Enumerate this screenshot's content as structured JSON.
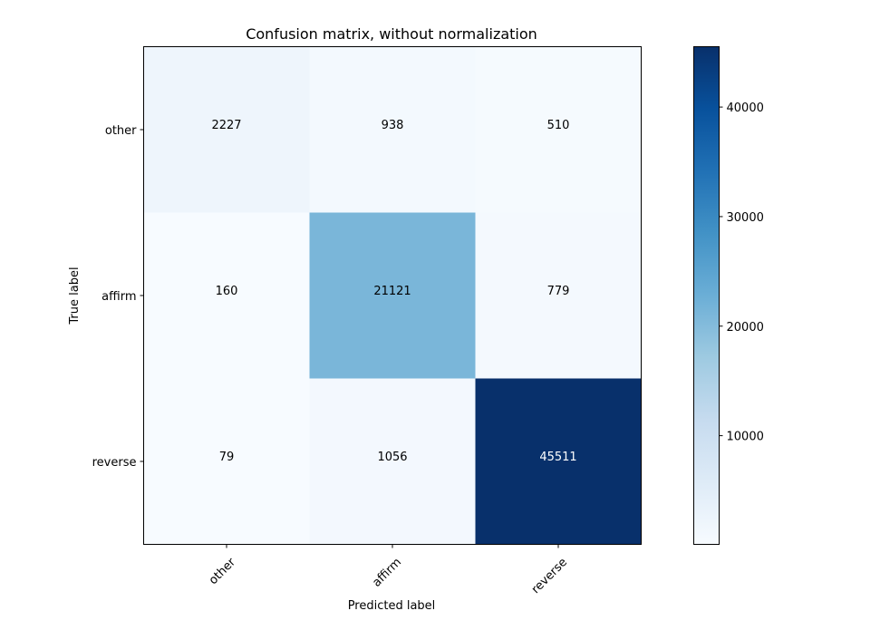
{
  "chart_data": {
    "type": "heatmap",
    "title": "Confusion matrix, without normalization",
    "xlabel": "Predicted label",
    "ylabel": "True label",
    "x_categories": [
      "other",
      "affirm",
      "reverse"
    ],
    "y_categories": [
      "other",
      "affirm",
      "reverse"
    ],
    "values": [
      [
        2227,
        938,
        510
      ],
      [
        160,
        21121,
        779
      ],
      [
        79,
        1056,
        45511
      ]
    ],
    "colormap": "Blues",
    "color_range": [
      79,
      45511
    ],
    "colorbar_ticks": [
      10000,
      20000,
      30000,
      40000
    ],
    "colorbar_tick_labels": [
      "10000",
      "20000",
      "30000",
      "40000"
    ],
    "grid": false
  }
}
